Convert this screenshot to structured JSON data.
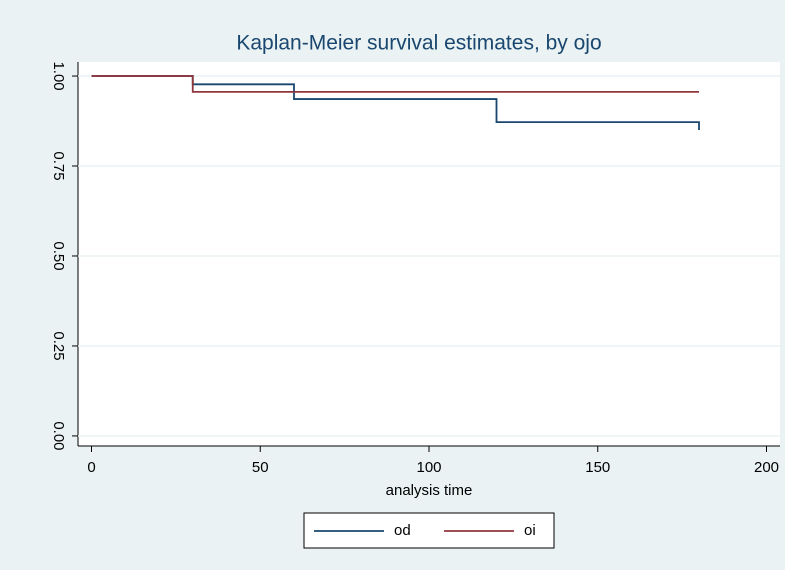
{
  "chart_data": {
    "type": "line",
    "step": true,
    "title": "Kaplan-Meier survival estimates, by ojo",
    "x_label": "analysis time",
    "series": [
      {
        "name": "od",
        "color": "#1a476f",
        "x": [
          0,
          30,
          60,
          120,
          180
        ],
        "values": [
          1.0,
          0.977,
          0.936,
          0.872,
          0.85
        ]
      },
      {
        "name": "oi",
        "color": "#90353b",
        "x": [
          0,
          30,
          180
        ],
        "values": [
          1.0,
          0.956,
          0.956
        ]
      }
    ],
    "xlim": [
      -4,
      204
    ],
    "xticks": [
      0,
      50,
      100,
      150,
      200
    ],
    "ylim": [
      -0.028,
      1.039
    ],
    "yticks": [
      {
        "value": 0,
        "label": "0.00"
      },
      {
        "value": 0.25,
        "label": "0.25"
      },
      {
        "value": 0.5,
        "label": "0.50"
      },
      {
        "value": 0.75,
        "label": "0.75"
      },
      {
        "value": 1,
        "label": "1.00"
      }
    ],
    "grid": true,
    "legend": "bottom"
  }
}
